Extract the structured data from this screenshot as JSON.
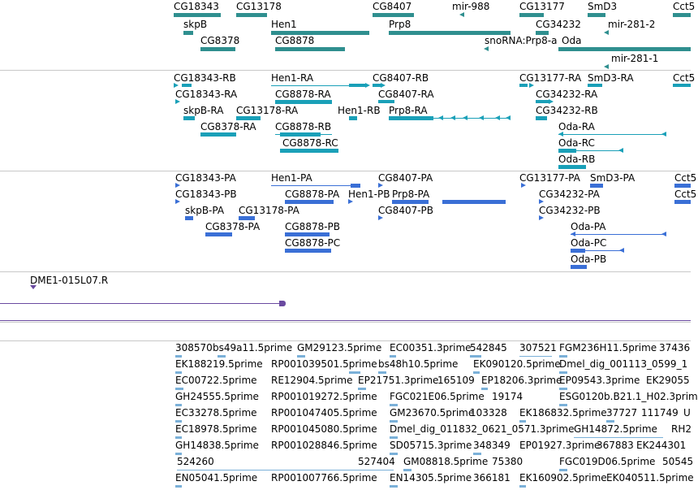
{
  "track_gene": {
    "labels": [
      "CG18343",
      "CG13178",
      "CG8407",
      "mir-988",
      "CG13177",
      "SmD3",
      "Cct5",
      "skpB",
      "Hen1",
      "Prp8",
      "CG34232",
      "mir-281-2",
      "CG8378",
      "CG8878",
      "snoRNA:Prp8-a",
      "Oda",
      "mir-281-1"
    ]
  },
  "track_transcript": {
    "labels": [
      "CG18343-RB",
      "Hen1-RA",
      "CG8407-RB",
      "CG13177-RA",
      "SmD3-RA",
      "Cct5",
      "CG18343-RA",
      "CG8878-RA",
      "CG8407-RA",
      "CG34232-RA",
      "skpB-RA",
      "CG13178-RA",
      "Hen1-RB",
      "Prp8-RA",
      "CG34232-RB",
      "CG8378-RA",
      "CG8878-RB",
      "Oda-RA",
      "CG8878-RC",
      "Oda-RC",
      "Oda-RB"
    ]
  },
  "track_protein": {
    "labels": [
      "CG18343-PA",
      "Hen1-PA",
      "CG8407-PA",
      "CG13177-PA",
      "SmD3-PA",
      "Cct5",
      "CG18343-PB",
      "CG8878-PA",
      "Hen1-PB",
      "Prp8-PA",
      "CG34232-PA",
      "CG8407-PB",
      "CG34232-PB",
      "skpB-PA",
      "CG13178-PA",
      "CG8378-PA",
      "CG8878-PB",
      "Oda-PA",
      "CG8878-PC",
      "Oda-PC",
      "Oda-PB"
    ]
  },
  "track_clone": {
    "labels": [
      "DME1-015L07.R"
    ]
  },
  "track_est": {
    "rows": [
      [
        "308570",
        "bs49a11.5prime",
        "GM29123.5prime",
        "EC00351.3prime",
        "542845",
        "307521",
        "FGM236H11.5prime",
        "37436"
      ],
      [
        "EK188219.5prime",
        "RP001039501.5prime",
        "bs48h10.5prime",
        "EK090120.5prime",
        "Dmel_dig_001113_0599_1"
      ],
      [
        "EC00722.5prime",
        "RE12904.5prime",
        "EP21751.3prime",
        "165109",
        "EP18206.3prime",
        "EP09543.3prime",
        "EK29055"
      ],
      [
        "GH24555.5prime",
        "RP001019272.5prime",
        "FGC021E06.5prime",
        "19174",
        "ESG0120b.B21.1_H02.3prim"
      ],
      [
        "EC33278.5prime",
        "RP001047405.5prime",
        "GM23670.5prime",
        "103328",
        "EK186832.5prime",
        "37727",
        "111749",
        "U"
      ],
      [
        "EC18978.5prime",
        "RP001045080.5prime",
        "Dmel_dig_011832_0621_0571.3prime",
        "GH14872.5prime",
        "RH2"
      ],
      [
        "GH14838.5prime",
        "RP001028846.5prime",
        "SD05715.3prime",
        "348349",
        "EP01927.3prime",
        "367883",
        "EK244301"
      ],
      [
        "524260",
        "527404",
        "GM08818.5prime",
        "75380",
        "FGC019D06.5prime",
        "50545"
      ],
      [
        "EN05041.5prime",
        "RP001007766.5prime",
        "EN14305.5prime",
        "366181",
        "EK160902.5prime",
        "EK040511.5prime"
      ]
    ]
  }
}
